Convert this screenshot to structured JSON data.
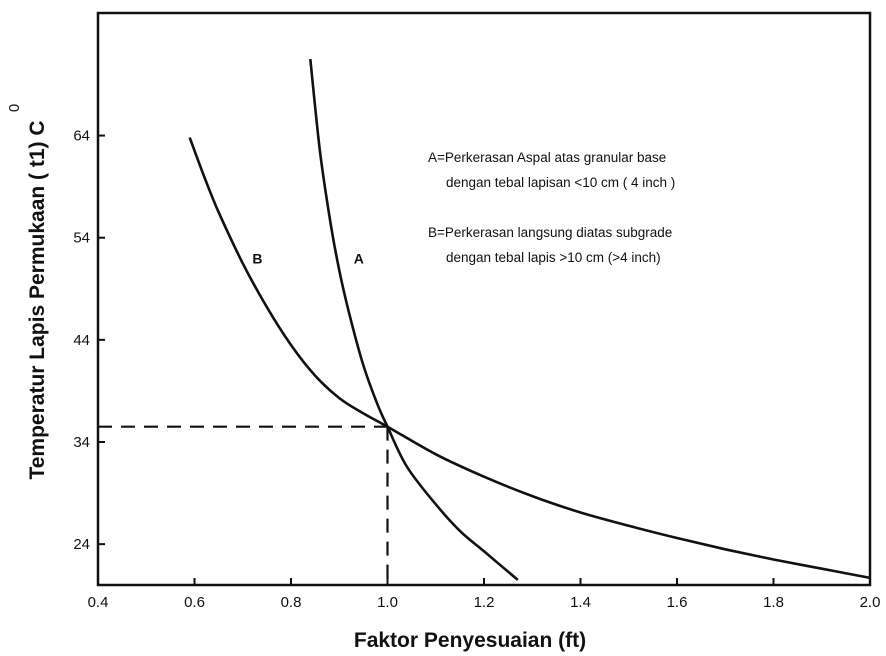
{
  "chart_data": {
    "type": "line",
    "xlabel": "Faktor Penyesuaian (ft)",
    "ylabel": "Temperatur Lapis Permukaan ( t1) C",
    "ylabel_superscript": "0",
    "xlim": [
      0.4,
      2.0
    ],
    "ylim": [
      20,
      76
    ],
    "x_ticks": [
      {
        "value": 0.4,
        "label": "0.4"
      },
      {
        "value": 0.6,
        "label": "0.6"
      },
      {
        "value": 0.8,
        "label": "0.8"
      },
      {
        "value": 1.0,
        "label": "1.0"
      },
      {
        "value": 1.2,
        "label": "1.2"
      },
      {
        "value": 1.4,
        "label": "1.4"
      },
      {
        "value": 1.6,
        "label": "1.6"
      },
      {
        "value": 1.8,
        "label": "1.8"
      },
      {
        "value": 2.0,
        "label": "2.0"
      }
    ],
    "y_ticks": [
      {
        "value": 24,
        "label": "24"
      },
      {
        "value": 34,
        "label": "34"
      },
      {
        "value": 44,
        "label": "44"
      },
      {
        "value": 54,
        "label": "54"
      },
      {
        "value": 64,
        "label": "64"
      }
    ],
    "grid": false,
    "series": [
      {
        "name": "A",
        "label_at": [
          0.93,
          51.5
        ],
        "points": [
          [
            0.84,
            71.5
          ],
          [
            0.86,
            62.5
          ],
          [
            0.88,
            56
          ],
          [
            0.9,
            50.8
          ],
          [
            0.92,
            46.7
          ],
          [
            0.95,
            41.5
          ],
          [
            0.98,
            37.6
          ],
          [
            1.0,
            35.5
          ],
          [
            1.04,
            31.6
          ],
          [
            1.1,
            27.9
          ],
          [
            1.15,
            25.3
          ],
          [
            1.2,
            23.3
          ],
          [
            1.27,
            20.5
          ]
        ]
      },
      {
        "name": "B",
        "label_at": [
          0.72,
          51.5
        ],
        "points": [
          [
            0.59,
            63.8
          ],
          [
            0.62,
            60
          ],
          [
            0.65,
            56.5
          ],
          [
            0.7,
            51.5
          ],
          [
            0.75,
            47.2
          ],
          [
            0.8,
            43.5
          ],
          [
            0.85,
            40.5
          ],
          [
            0.9,
            38.3
          ],
          [
            0.95,
            36.8
          ],
          [
            1.0,
            35.5
          ],
          [
            1.1,
            32.8
          ],
          [
            1.2,
            30.6
          ],
          [
            1.3,
            28.7
          ],
          [
            1.4,
            27.1
          ],
          [
            1.5,
            25.8
          ],
          [
            1.6,
            24.6
          ],
          [
            1.7,
            23.5
          ],
          [
            1.8,
            22.5
          ],
          [
            1.9,
            21.6
          ],
          [
            2.0,
            20.7
          ]
        ]
      }
    ],
    "reference_lines": {
      "x": 1.0,
      "y": 35.5,
      "style": "dashed"
    },
    "legend": {
      "position": "top-right",
      "entries": [
        {
          "line1": "A=Perkerasan Aspal atas granular base",
          "line2": "dengan tebal lapisan <10 cm ( 4 inch )"
        },
        {
          "line1": "B=Perkerasan langsung diatas subgrade",
          "line2": "dengan tebal lapis >10 cm (>4 inch)"
        }
      ]
    }
  }
}
